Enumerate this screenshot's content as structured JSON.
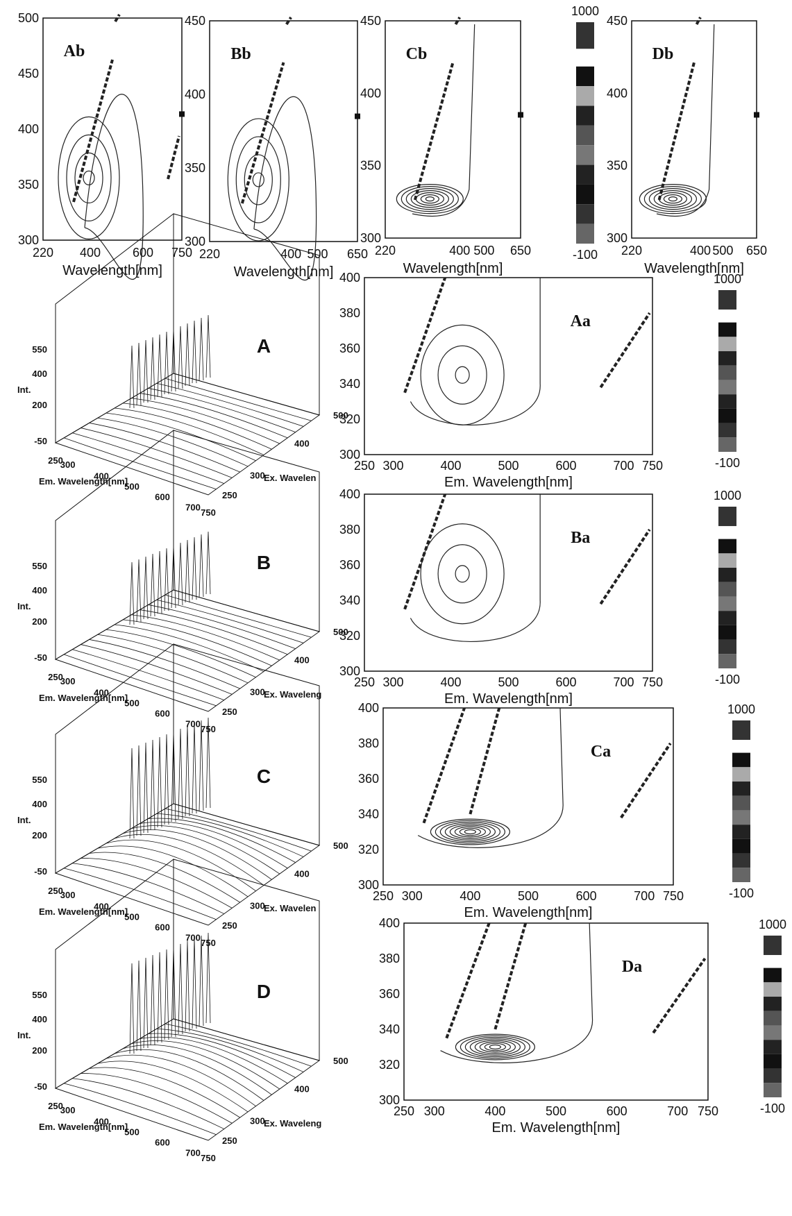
{
  "top_row": {
    "panels": [
      {
        "label": "Ab",
        "xlabel": "Wavelength[nm]",
        "xticks": [
          "220",
          "400",
          "600",
          "750"
        ],
        "yticks": [
          "300",
          "350",
          "400",
          "450",
          "500"
        ]
      },
      {
        "label": "Bb",
        "xlabel": "Wavelength[nm]",
        "xticks": [
          "220",
          "400",
          "500",
          "650"
        ],
        "yticks": [
          "300",
          "350",
          "400",
          "450"
        ]
      },
      {
        "label": "Cb",
        "xlabel": "Wavelength[nm]",
        "xticks": [
          "220",
          "400",
          "500",
          "650"
        ],
        "yticks": [
          "300",
          "350",
          "400",
          "450"
        ]
      },
      {
        "label": "Db",
        "xlabel": "Wavelength[nm]",
        "xticks": [
          "220",
          "400",
          "500",
          "650"
        ],
        "yticks": [
          "300",
          "350",
          "400",
          "450"
        ]
      }
    ],
    "colorbar": {
      "max": "1000",
      "min": "-100",
      "colors": [
        "#333333",
        "#111111",
        "#aaaaaa",
        "#222222",
        "#555555",
        "#777777",
        "#222222",
        "#111111",
        "#333333",
        "#666666"
      ]
    }
  },
  "rows": [
    {
      "surface_label": "A",
      "contour_label": "Aa",
      "ex_label": "Ex. Wavelen",
      "xlabel": "Em. Wavelength[nm]",
      "colorbar_max": "1000",
      "colorbar_min": "-100"
    },
    {
      "surface_label": "B",
      "contour_label": "Ba",
      "ex_label": "Ex. Waveleng",
      "xlabel": "Em. Wavelength[nm]",
      "colorbar_max": "1000",
      "colorbar_min": "-100"
    },
    {
      "surface_label": "C",
      "contour_label": "Ca",
      "ex_label": "Ex. Wavelen",
      "xlabel": "Em. Wavelength[nm]",
      "colorbar_max": "1000",
      "colorbar_min": "-100"
    },
    {
      "surface_label": "D",
      "contour_label": "Da",
      "ex_label": "Ex. Waveleng",
      "xlabel": "Em. Wavelength[nm]",
      "colorbar_max": "1000",
      "colorbar_min": "-100"
    }
  ],
  "surface_axes": {
    "int_label": "Int.",
    "int_ticks": [
      "550",
      "400",
      "200",
      "-50"
    ],
    "em_ticks": [
      "250",
      "300",
      "400",
      "500",
      "600",
      "700",
      "750"
    ],
    "ex_ticks": [
      "500",
      "400",
      "300",
      "250"
    ]
  },
  "contour_axes": {
    "xticks": [
      "250",
      "300",
      "400",
      "500",
      "600",
      "700",
      "750"
    ],
    "yticks": [
      "300",
      "320",
      "340",
      "360",
      "380",
      "400"
    ]
  },
  "chart_data": [
    {
      "type": "heatmap",
      "panel": "Ab",
      "xlabel": "Wavelength[nm]",
      "xlim": [
        220,
        750
      ],
      "ylim": [
        300,
        500
      ],
      "peak": {
        "em": 420,
        "ex": 345
      }
    },
    {
      "type": "heatmap",
      "panel": "Bb",
      "xlabel": "Wavelength[nm]",
      "xlim": [
        220,
        650
      ],
      "ylim": [
        300,
        450
      ],
      "peak": {
        "em": 420,
        "ex": 355
      }
    },
    {
      "type": "heatmap",
      "panel": "Cb",
      "xlabel": "Wavelength[nm]",
      "xlim": [
        220,
        650
      ],
      "ylim": [
        300,
        450
      ],
      "peak": {
        "em": 400,
        "ex": 330
      }
    },
    {
      "type": "heatmap",
      "panel": "Db",
      "xlabel": "Wavelength[nm]",
      "xlim": [
        220,
        650
      ],
      "ylim": [
        300,
        450
      ],
      "peak": {
        "em": 400,
        "ex": 330
      }
    },
    {
      "type": "heatmap",
      "panel": "Aa",
      "xlabel": "Em. Wavelength[nm]",
      "xlim": [
        250,
        750
      ],
      "ylim": [
        300,
        400
      ],
      "peak": {
        "em": 420,
        "ex": 345
      }
    },
    {
      "type": "heatmap",
      "panel": "Ba",
      "xlabel": "Em. Wavelength[nm]",
      "xlim": [
        250,
        750
      ],
      "ylim": [
        300,
        400
      ],
      "peak": {
        "em": 420,
        "ex": 355
      }
    },
    {
      "type": "heatmap",
      "panel": "Ca",
      "xlabel": "Em. Wavelength[nm]",
      "xlim": [
        250,
        750
      ],
      "ylim": [
        300,
        400
      ],
      "peak": {
        "em": 400,
        "ex": 330
      }
    },
    {
      "type": "heatmap",
      "panel": "Da",
      "xlabel": "Em. Wavelength[nm]",
      "xlim": [
        250,
        750
      ],
      "ylim": [
        300,
        400
      ],
      "peak": {
        "em": 400,
        "ex": 330
      }
    }
  ]
}
